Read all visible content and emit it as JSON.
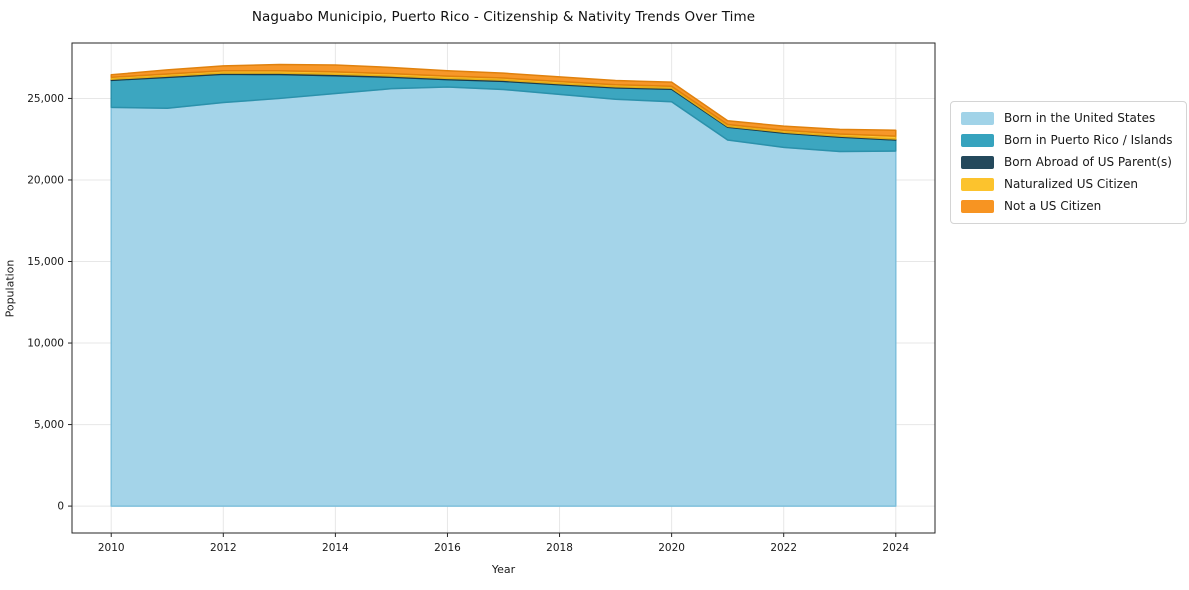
{
  "title": "Naguabo Municipio, Puerto Rico - Citizenship & Nativity Trends Over Time",
  "chart_data": {
    "type": "area",
    "stacked": true,
    "title": "Naguabo Municipio, Puerto Rico - Citizenship & Nativity Trends Over Time",
    "xlabel": "Year",
    "ylabel": "Population",
    "x": [
      2010,
      2011,
      2012,
      2013,
      2014,
      2015,
      2016,
      2017,
      2018,
      2019,
      2020,
      2021,
      2022,
      2023,
      2024
    ],
    "series": [
      {
        "name": "Born in the United States",
        "color": "#a1d3e8",
        "edge": "#7fc0dc",
        "values": [
          24450,
          24400,
          24750,
          25000,
          25300,
          25600,
          25700,
          25550,
          25250,
          24950,
          24800,
          22450,
          22000,
          21750,
          21775
        ]
      },
      {
        "name": "Born in Puerto Rico / Islands",
        "color": "#36a3be",
        "edge": "#2b91ab",
        "values": [
          1660,
          1895,
          1730,
          1465,
          1095,
          700,
          455,
          495,
          590,
          700,
          765,
          785,
          875,
          880,
          675
        ]
      },
      {
        "name": "Born Abroad of US Parent(s)",
        "color": "#24495c",
        "edge": "#1a3a4a",
        "values": [
          70,
          75,
          80,
          85,
          85,
          80,
          75,
          75,
          70,
          70,
          65,
          55,
          55,
          60,
          60
        ]
      },
      {
        "name": "Naturalized US Citizen",
        "color": "#fcc32d",
        "edge": "#e5ab15",
        "values": [
          120,
          130,
          140,
          150,
          150,
          140,
          140,
          130,
          130,
          120,
          120,
          110,
          120,
          130,
          180
        ]
      },
      {
        "name": "Not a US Citizen",
        "color": "#f79422",
        "edge": "#e0810d",
        "values": [
          150,
          250,
          300,
          380,
          420,
          380,
          330,
          300,
          280,
          260,
          250,
          230,
          250,
          280,
          360
        ]
      }
    ],
    "xlim": [
      2009.3,
      2024.7
    ],
    "ylim": [
      -1650,
      28400
    ],
    "xticks": [
      2010,
      2012,
      2014,
      2016,
      2018,
      2020,
      2022,
      2024
    ],
    "xtick_labels": [
      "2010",
      "2012",
      "2014",
      "2016",
      "2018",
      "2020",
      "2022",
      "2024"
    ],
    "yticks": [
      0,
      5000,
      10000,
      15000,
      20000,
      25000
    ],
    "ytick_labels": [
      "0",
      "5,000",
      "10,000",
      "15,000",
      "20,000",
      "25,000"
    ],
    "grid": true,
    "grid_color": "#e7e7e7",
    "frame_color": "#262626",
    "tick_label_color": "#1a1a1a",
    "legend_position": "right"
  }
}
